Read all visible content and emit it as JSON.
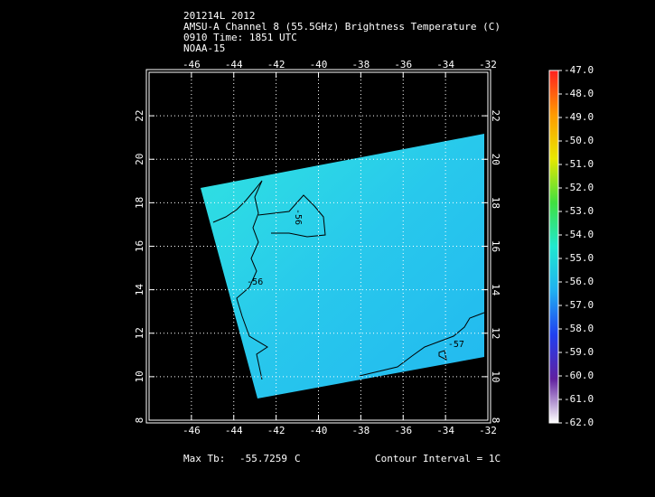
{
  "chart_data": {
    "type": "map",
    "title_lines": [
      "201214L 2012",
      "AMSU-A Channel 8 (55.5GHz) Brightness Temperature (C)",
      "0910 Time: 1851 UTC",
      "NOAA-15"
    ],
    "xlim": [
      -48,
      -32
    ],
    "xticks": [
      -46,
      -44,
      -42,
      -40,
      -38,
      -36,
      -34,
      -32
    ],
    "ylim": [
      8,
      24
    ],
    "yticks": [
      8,
      10,
      12,
      14,
      16,
      18,
      20,
      22
    ],
    "grid": true,
    "colorbar": {
      "lim": [
        -62,
        -47
      ],
      "ticks": [
        {
          "value": -47,
          "label": "-47.0"
        },
        {
          "value": -48,
          "label": "-48.0"
        },
        {
          "value": -49,
          "label": "-49.0"
        },
        {
          "value": -50,
          "label": "-50.0"
        },
        {
          "value": -51,
          "label": "-51.0"
        },
        {
          "value": -52,
          "label": "-52.0"
        },
        {
          "value": -53,
          "label": "-53.0"
        },
        {
          "value": -54,
          "label": "-54.0"
        },
        {
          "value": -55,
          "label": "-55.0"
        },
        {
          "value": -56,
          "label": "-56.0"
        },
        {
          "value": -57,
          "label": "-57.0"
        },
        {
          "value": -58,
          "label": "-58.0"
        },
        {
          "value": -59,
          "label": "-59.0"
        },
        {
          "value": -60,
          "label": "-60.0"
        },
        {
          "value": -61,
          "label": "-61.0"
        },
        {
          "value": -62,
          "label": "-62.0"
        }
      ],
      "colors": [
        "#ff2020",
        "#ff9a00",
        "#e8e800",
        "#40e040",
        "#20e8d0",
        "#20b0f0",
        "#2040f0",
        "#6020a0",
        "#ffffff"
      ]
    },
    "contour_labels": [
      {
        "value": -56,
        "lon": -40.96,
        "lat": 17.35
      },
      {
        "value": -56,
        "lon": -43.0,
        "lat": 14.36
      },
      {
        "value": -57,
        "lon": -33.5,
        "lat": 11.49
      }
    ],
    "max_tb_label": "Max Tb:",
    "max_tb": -55.7259,
    "max_tb_unit": "C",
    "contour_interval": "Contour Interval = 1C"
  }
}
